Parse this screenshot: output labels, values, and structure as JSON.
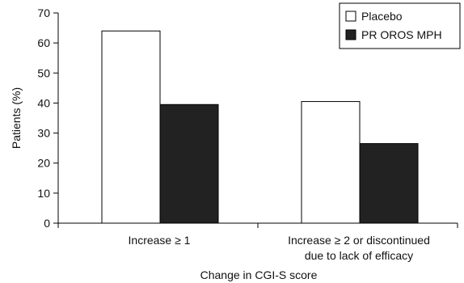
{
  "chart_data": {
    "type": "bar",
    "title": "",
    "xlabel": "Change in CGI-S score",
    "ylabel": "Patients (%)",
    "ylim": [
      0,
      70
    ],
    "yticks": [
      0,
      10,
      20,
      30,
      40,
      50,
      60,
      70
    ],
    "grid": false,
    "legend_position": "top-right",
    "categories": [
      [
        "Increase ≥ 1"
      ],
      [
        "Increase ≥ 2 or discontinued",
        "due to lack of efficacy"
      ]
    ],
    "series": [
      {
        "name": "Placebo",
        "values": [
          64,
          40.5
        ],
        "color": "#ffffff",
        "stroke": "#000000"
      },
      {
        "name": "PR OROS MPH",
        "values": [
          39.5,
          26.5
        ],
        "color": "#222222",
        "stroke": "#000000"
      }
    ]
  }
}
